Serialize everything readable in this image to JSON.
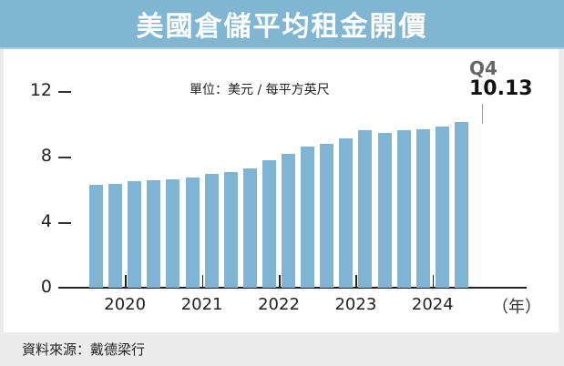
{
  "title": "美國倉儲平均租金開價",
  "unit_label": "單位：美元 / 每平方英尺",
  "source": "資料來源：戴德梁行",
  "annotation": {
    "quarter": "Q4",
    "value": "10.13"
  },
  "y_axis": {
    "ticks": [
      "12",
      "8",
      "4",
      "0"
    ]
  },
  "x_axis": {
    "ticks": [
      "2020",
      "2021",
      "2022",
      "2023",
      "2024"
    ],
    "unit": "（年）"
  },
  "colors": {
    "bar": "#7fb4d2",
    "banner": "#80b6d2"
  },
  "chart_data": {
    "type": "bar",
    "title": "美國倉儲平均租金開價",
    "subtitle": "單位：美元 / 每平方英尺",
    "xlabel": "（年）",
    "ylabel": "",
    "ylim": [
      0,
      12
    ],
    "yticks": [
      0,
      4,
      8,
      12
    ],
    "xtick_labels": [
      "2020",
      "2021",
      "2022",
      "2023",
      "2024"
    ],
    "grid": false,
    "categories": [
      "2020Q1",
      "2020Q2",
      "2020Q3",
      "2020Q4",
      "2021Q1",
      "2021Q2",
      "2021Q3",
      "2021Q4",
      "2022Q1",
      "2022Q2",
      "2022Q3",
      "2022Q4",
      "2023Q1",
      "2023Q2",
      "2023Q3",
      "2023Q4",
      "2024Q1",
      "2024Q2",
      "2024Q3",
      "2024Q4"
    ],
    "values": [
      6.28,
      6.32,
      6.5,
      6.57,
      6.63,
      6.74,
      6.96,
      7.04,
      7.3,
      7.78,
      8.18,
      8.61,
      8.76,
      9.09,
      9.61,
      9.44,
      9.61,
      9.68,
      9.85,
      10.13
    ],
    "annotations": [
      {
        "category": "2024Q4",
        "text": "Q4 10.13"
      }
    ],
    "source": "資料來源：戴德梁行"
  }
}
